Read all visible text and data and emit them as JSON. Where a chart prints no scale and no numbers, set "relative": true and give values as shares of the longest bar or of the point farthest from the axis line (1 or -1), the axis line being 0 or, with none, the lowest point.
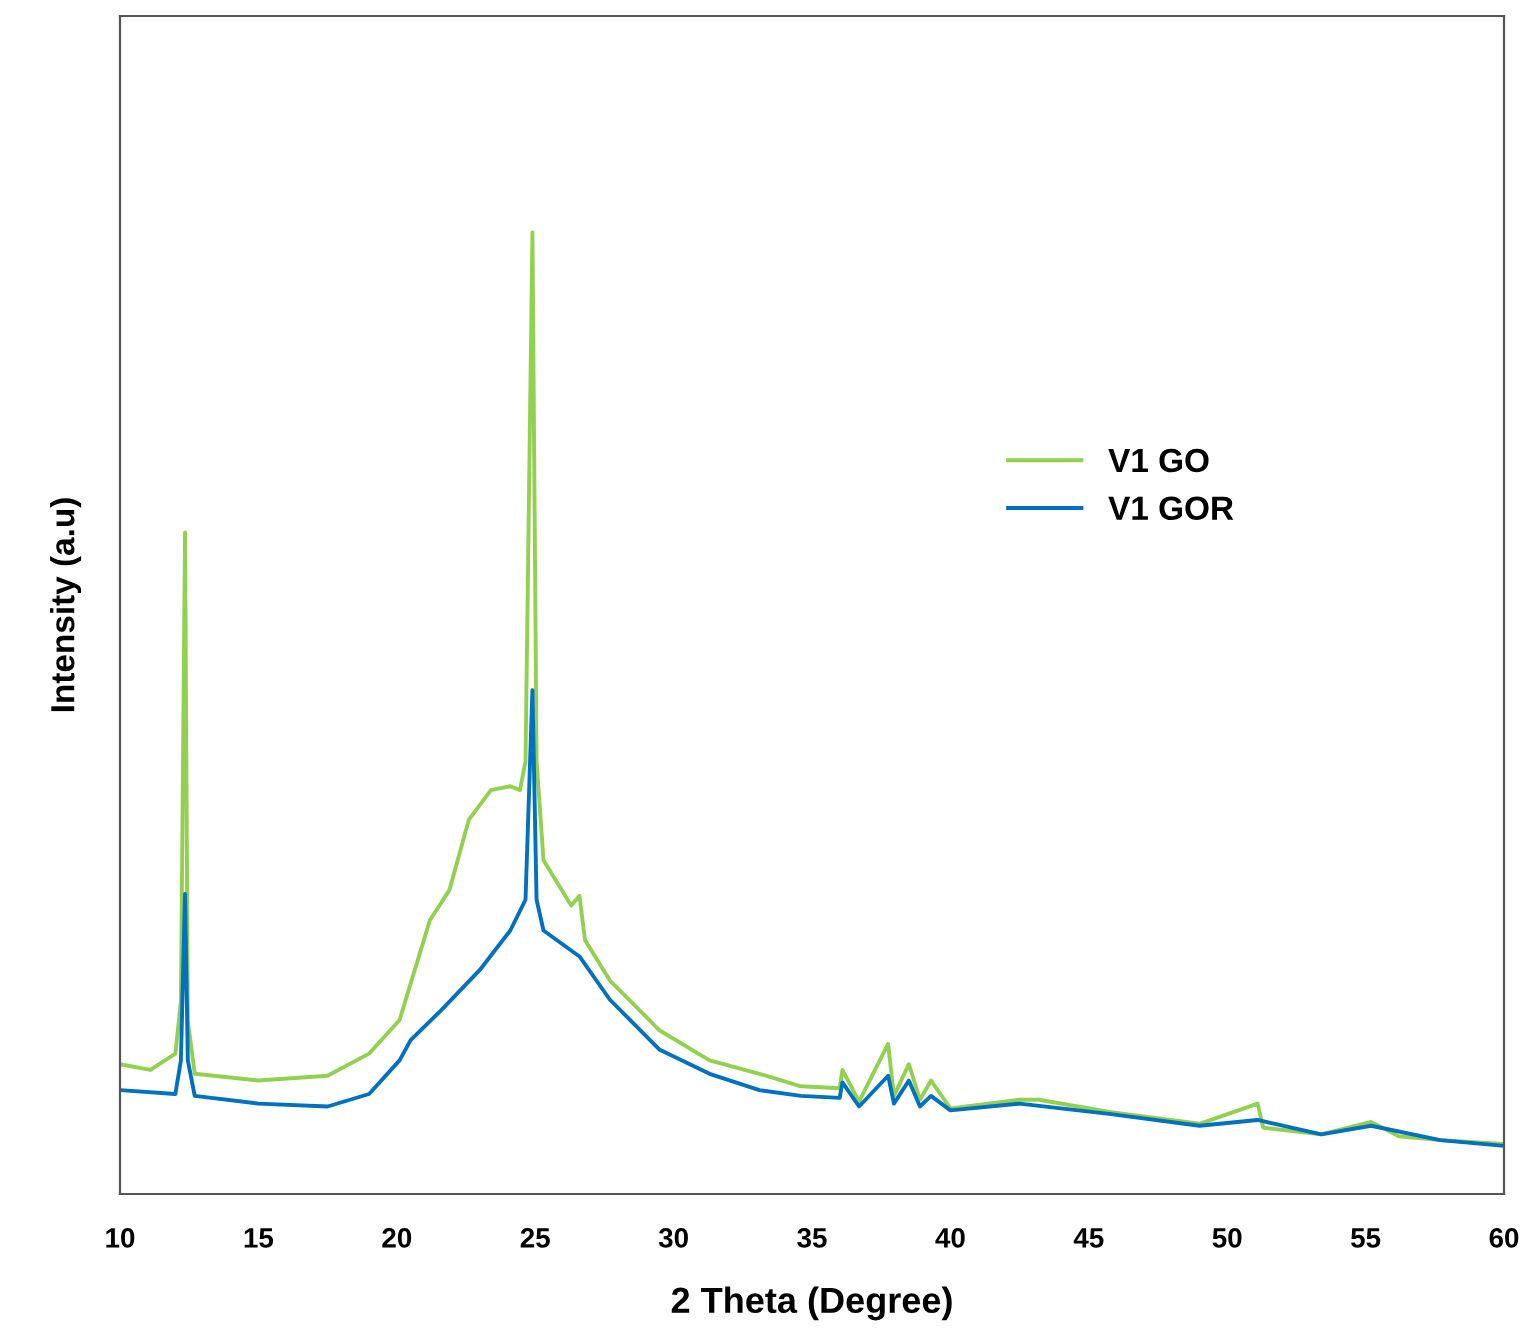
{
  "chart_data": {
    "type": "line",
    "relative": true,
    "xlabel": "2 Theta (Degree)",
    "ylabel": "Intensity (a.u)",
    "xlim": [
      10,
      60
    ],
    "xticks": [
      10,
      15,
      20,
      25,
      30,
      35,
      40,
      45,
      50,
      55,
      60
    ],
    "grid": false,
    "legend": "right",
    "marker": "none",
    "line_style": "solid",
    "series": [
      {
        "name": "V1 GO",
        "color": "#92d050",
        "x": [
          10,
          11.1,
          12.0,
          12.2,
          12.35,
          12.45,
          12.7,
          15,
          17.5,
          19.0,
          20.1,
          21.2,
          21.9,
          22.6,
          23.4,
          24.1,
          24.45,
          24.65,
          24.9,
          25.05,
          25.3,
          26.3,
          26.6,
          26.8,
          27.7,
          29.5,
          31.3,
          33.1,
          34.6,
          36.0,
          36.1,
          36.7,
          37.75,
          37.96,
          38.5,
          38.9,
          39.3,
          40.0,
          42.5,
          43.2,
          45.8,
          49.0,
          51.1,
          51.3,
          53.4,
          55.2,
          56.2,
          57.7,
          60
        ],
        "values": [
          0.135,
          0.129,
          0.146,
          0.2,
          0.688,
          0.18,
          0.125,
          0.118,
          0.123,
          0.146,
          0.181,
          0.285,
          0.316,
          0.389,
          0.42,
          0.424,
          0.42,
          0.45,
          1.0,
          0.45,
          0.347,
          0.3,
          0.31,
          0.264,
          0.222,
          0.17,
          0.139,
          0.125,
          0.112,
          0.11,
          0.129,
          0.096,
          0.156,
          0.102,
          0.135,
          0.098,
          0.118,
          0.089,
          0.098,
          0.098,
          0.085,
          0.073,
          0.094,
          0.069,
          0.062,
          0.075,
          0.06,
          0.056,
          0.052
        ]
      },
      {
        "name": "V1 GOR",
        "color": "#0070c0",
        "x": [
          10,
          12.0,
          12.2,
          12.35,
          12.45,
          12.7,
          15,
          17.5,
          19.0,
          20.1,
          20.5,
          21.6,
          23.0,
          24.1,
          24.65,
          24.9,
          25.05,
          25.3,
          26.6,
          27.7,
          29.5,
          31.3,
          33.1,
          34.6,
          36.0,
          36.1,
          36.7,
          37.75,
          37.96,
          38.5,
          38.9,
          39.3,
          40.0,
          42.5,
          45.8,
          49.0,
          51.1,
          53.4,
          55.2,
          57.7,
          60
        ],
        "values": [
          0.108,
          0.104,
          0.139,
          0.312,
          0.139,
          0.102,
          0.094,
          0.091,
          0.104,
          0.139,
          0.16,
          0.191,
          0.233,
          0.274,
          0.306,
          0.524,
          0.306,
          0.274,
          0.247,
          0.202,
          0.15,
          0.125,
          0.108,
          0.102,
          0.1,
          0.116,
          0.091,
          0.123,
          0.094,
          0.118,
          0.091,
          0.102,
          0.087,
          0.094,
          0.083,
          0.071,
          0.077,
          0.062,
          0.071,
          0.056,
          0.05
        ]
      }
    ]
  }
}
